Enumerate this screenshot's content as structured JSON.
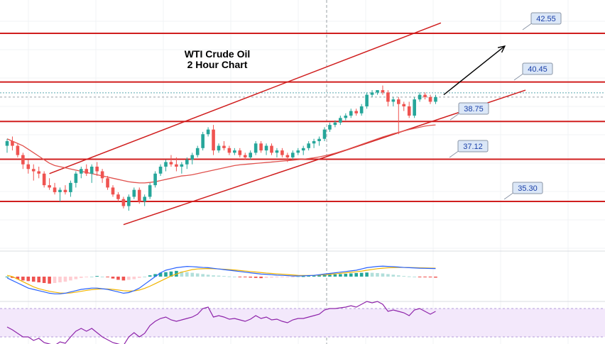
{
  "chart_data": [
    {
      "type": "candlestick",
      "title": "WTI Crude Oil",
      "subtitle": "2 Hour Chart",
      "candles": [
        [
          37.7,
          38.0,
          37.4,
          37.9
        ],
        [
          37.9,
          38.1,
          37.5,
          37.7
        ],
        [
          37.7,
          37.8,
          37.2,
          37.3
        ],
        [
          37.3,
          37.4,
          36.7,
          36.9
        ],
        [
          36.9,
          37.1,
          36.5,
          36.7
        ],
        [
          36.7,
          36.9,
          36.2,
          36.6
        ],
        [
          36.6,
          36.8,
          36.3,
          36.5
        ],
        [
          36.5,
          36.6,
          35.9,
          36.0
        ],
        [
          36.0,
          36.3,
          35.8,
          35.9
        ],
        [
          35.9,
          36.1,
          35.6,
          35.7
        ],
        [
          35.7,
          35.9,
          35.3,
          35.8
        ],
        [
          35.8,
          36.0,
          35.6,
          35.7
        ],
        [
          35.7,
          36.2,
          35.5,
          36.1
        ],
        [
          36.1,
          36.6,
          35.9,
          36.5
        ],
        [
          36.5,
          36.8,
          36.3,
          36.7
        ],
        [
          36.7,
          36.9,
          36.4,
          36.5
        ],
        [
          36.5,
          36.9,
          36.1,
          36.8
        ],
        [
          36.8,
          37.0,
          36.4,
          36.6
        ],
        [
          36.6,
          36.7,
          36.1,
          36.3
        ],
        [
          36.3,
          36.4,
          35.8,
          35.9
        ],
        [
          35.9,
          36.0,
          35.5,
          35.6
        ],
        [
          35.6,
          35.7,
          35.3,
          35.4
        ],
        [
          35.4,
          35.5,
          35.0,
          35.1
        ],
        [
          35.1,
          35.6,
          34.9,
          35.5
        ],
        [
          35.5,
          35.9,
          35.4,
          35.8
        ],
        [
          35.8,
          35.9,
          35.2,
          35.3
        ],
        [
          35.3,
          35.6,
          35.1,
          35.5
        ],
        [
          35.5,
          36.1,
          35.4,
          36.0
        ],
        [
          36.0,
          36.6,
          35.9,
          36.5
        ],
        [
          36.5,
          36.9,
          36.4,
          36.8
        ],
        [
          36.8,
          37.1,
          36.6,
          37.0
        ],
        [
          37.0,
          37.3,
          36.8,
          36.9
        ],
        [
          36.9,
          37.2,
          36.6,
          36.8
        ],
        [
          36.8,
          37.0,
          36.5,
          36.9
        ],
        [
          36.9,
          37.2,
          36.7,
          37.1
        ],
        [
          37.1,
          37.4,
          36.9,
          37.3
        ],
        [
          37.3,
          37.7,
          37.2,
          37.6
        ],
        [
          37.6,
          38.3,
          37.5,
          38.2
        ],
        [
          38.2,
          38.5,
          38.1,
          38.4
        ],
        [
          38.4,
          38.6,
          37.3,
          37.5
        ],
        [
          37.5,
          37.8,
          37.4,
          37.7
        ],
        [
          37.7,
          37.9,
          37.5,
          37.6
        ],
        [
          37.6,
          37.7,
          37.3,
          37.4
        ],
        [
          37.4,
          37.6,
          37.3,
          37.5
        ],
        [
          37.5,
          37.6,
          37.2,
          37.3
        ],
        [
          37.3,
          37.4,
          37.1,
          37.2
        ],
        [
          37.2,
          37.5,
          37.1,
          37.4
        ],
        [
          37.4,
          37.9,
          37.3,
          37.8
        ],
        [
          37.8,
          37.9,
          37.4,
          37.5
        ],
        [
          37.5,
          37.8,
          37.3,
          37.7
        ],
        [
          37.7,
          37.8,
          37.3,
          37.4
        ],
        [
          37.4,
          37.6,
          37.2,
          37.5
        ],
        [
          37.5,
          37.6,
          37.2,
          37.3
        ],
        [
          37.3,
          37.4,
          37.0,
          37.2
        ],
        [
          37.2,
          37.5,
          37.1,
          37.4
        ],
        [
          37.4,
          37.6,
          37.3,
          37.5
        ],
        [
          37.5,
          37.7,
          37.3,
          37.6
        ],
        [
          37.6,
          37.9,
          37.5,
          37.8
        ],
        [
          37.8,
          38.0,
          37.6,
          37.9
        ],
        [
          37.9,
          38.1,
          37.7,
          38.0
        ],
        [
          38.0,
          38.5,
          37.9,
          38.4
        ],
        [
          38.4,
          38.7,
          38.3,
          38.6
        ],
        [
          38.6,
          38.8,
          38.5,
          38.7
        ],
        [
          38.7,
          39.0,
          38.6,
          38.9
        ],
        [
          38.9,
          39.1,
          38.8,
          39.0
        ],
        [
          39.0,
          39.3,
          38.9,
          39.2
        ],
        [
          39.2,
          39.3,
          39.0,
          39.1
        ],
        [
          39.1,
          39.5,
          39.0,
          39.4
        ],
        [
          39.4,
          40.0,
          39.3,
          39.9
        ],
        [
          39.9,
          40.1,
          39.8,
          40.0
        ],
        [
          40.0,
          40.1,
          39.9,
          40.1
        ],
        [
          40.1,
          40.3,
          39.9,
          40.0
        ],
        [
          40.0,
          40.1,
          39.4,
          39.6
        ],
        [
          39.6,
          39.8,
          39.4,
          39.7
        ],
        [
          39.7,
          39.8,
          38.2,
          39.5
        ],
        [
          39.5,
          39.6,
          39.2,
          39.4
        ],
        [
          39.4,
          39.6,
          38.9,
          39.0
        ],
        [
          39.0,
          39.8,
          38.9,
          39.7
        ],
        [
          39.7,
          40.0,
          39.6,
          39.9
        ],
        [
          39.9,
          40.0,
          39.7,
          39.8
        ],
        [
          39.8,
          39.9,
          39.5,
          39.6
        ],
        [
          39.6,
          39.9,
          39.5,
          39.8
        ]
      ],
      "moving_average": [
        38.0,
        37.9,
        37.8,
        37.7,
        37.55,
        37.4,
        37.25,
        37.1,
        36.95,
        36.85,
        36.8,
        36.75,
        36.7,
        36.65,
        36.6,
        36.55,
        36.5,
        36.45,
        36.4,
        36.35,
        36.3,
        36.25,
        36.2,
        36.15,
        36.12,
        36.1,
        36.1,
        36.12,
        36.15,
        36.2,
        36.25,
        36.3,
        36.35,
        36.4,
        36.42,
        36.45,
        36.5,
        36.55,
        36.6,
        36.65,
        36.7,
        36.75,
        36.8,
        36.85,
        36.88,
        36.9,
        36.92,
        36.94,
        36.96,
        36.98,
        37.0,
        37.02,
        37.04,
        37.06,
        37.08,
        37.1,
        37.12,
        37.15,
        37.18,
        37.22,
        37.27,
        37.32,
        37.38,
        37.45,
        37.52,
        37.6,
        37.68,
        37.76,
        37.84,
        37.92,
        38.0,
        38.08,
        38.15,
        38.22,
        38.28,
        38.34,
        38.4,
        38.45,
        38.5,
        38.55,
        38.58,
        38.6
      ],
      "levels": [
        42.55,
        40.45,
        38.75,
        37.12,
        35.3
      ],
      "channel": {
        "upper": [
          [
            8,
            36.5
          ],
          [
            82,
            43.0
          ]
        ],
        "lower": [
          [
            22,
            34.3
          ],
          [
            98,
            40.1
          ]
        ]
      },
      "arrow": {
        "from": [
          82,
          39.9
        ],
        "to": [
          93,
          42.0
        ]
      }
    },
    {
      "type": "macd",
      "histogram": [
        0.0,
        -0.1,
        -0.2,
        -0.3,
        -0.35,
        -0.4,
        -0.45,
        -0.5,
        -0.55,
        -0.5,
        -0.45,
        -0.4,
        -0.3,
        -0.2,
        -0.1,
        -0.05,
        0.0,
        0.05,
        0.0,
        -0.05,
        -0.15,
        -0.25,
        -0.3,
        -0.25,
        -0.2,
        -0.1,
        0.0,
        0.1,
        0.2,
        0.3,
        0.35,
        0.4,
        0.45,
        0.4,
        0.35,
        0.3,
        0.25,
        0.2,
        0.15,
        0.1,
        0.08,
        0.05,
        0.02,
        0.0,
        -0.02,
        -0.05,
        -0.08,
        -0.1,
        -0.12,
        -0.1,
        -0.08,
        -0.06,
        -0.05,
        -0.04,
        -0.03,
        0.0,
        0.03,
        0.05,
        0.08,
        0.1,
        0.12,
        0.15,
        0.18,
        0.2,
        0.22,
        0.25,
        0.28,
        0.3,
        0.32,
        0.3,
        0.28,
        0.25,
        0.2,
        0.15,
        0.1,
        0.05,
        0.02,
        0.0,
        -0.02,
        -0.04,
        -0.06,
        -0.08
      ],
      "macd": [
        -0.1,
        -0.3,
        -0.5,
        -0.7,
        -0.9,
        -1.0,
        -1.1,
        -1.2,
        -1.3,
        -1.35,
        -1.35,
        -1.3,
        -1.2,
        -1.1,
        -1.0,
        -0.95,
        -0.9,
        -0.9,
        -0.95,
        -1.0,
        -1.1,
        -1.2,
        -1.3,
        -1.25,
        -1.1,
        -0.9,
        -0.6,
        -0.3,
        0.0,
        0.3,
        0.5,
        0.6,
        0.7,
        0.75,
        0.8,
        0.78,
        0.75,
        0.72,
        0.7,
        0.65,
        0.6,
        0.55,
        0.5,
        0.45,
        0.4,
        0.35,
        0.3,
        0.25,
        0.2,
        0.18,
        0.15,
        0.12,
        0.1,
        0.08,
        0.05,
        0.05,
        0.06,
        0.08,
        0.1,
        0.15,
        0.2,
        0.25,
        0.3,
        0.35,
        0.4,
        0.45,
        0.5,
        0.6,
        0.7,
        0.75,
        0.8,
        0.82,
        0.8,
        0.78,
        0.75,
        0.72,
        0.7,
        0.68,
        0.66,
        0.65,
        0.64,
        0.63
      ],
      "signal": [
        0.1,
        0.0,
        -0.2,
        -0.4,
        -0.6,
        -0.8,
        -0.95,
        -1.05,
        -1.15,
        -1.22,
        -1.28,
        -1.3,
        -1.28,
        -1.22,
        -1.15,
        -1.08,
        -1.02,
        -0.98,
        -0.96,
        -0.97,
        -1.0,
        -1.05,
        -1.1,
        -1.13,
        -1.12,
        -1.05,
        -0.92,
        -0.75,
        -0.55,
        -0.35,
        -0.15,
        0.05,
        0.2,
        0.35,
        0.45,
        0.55,
        0.6,
        0.62,
        0.63,
        0.62,
        0.6,
        0.58,
        0.55,
        0.52,
        0.48,
        0.44,
        0.4,
        0.36,
        0.32,
        0.28,
        0.25,
        0.22,
        0.19,
        0.16,
        0.13,
        0.1,
        0.09,
        0.09,
        0.1,
        0.12,
        0.15,
        0.18,
        0.22,
        0.26,
        0.3,
        0.34,
        0.38,
        0.43,
        0.5,
        0.56,
        0.62,
        0.66,
        0.69,
        0.71,
        0.72,
        0.72,
        0.71,
        0.7,
        0.69,
        0.68,
        0.67,
        0.66
      ]
    },
    {
      "type": "rsi",
      "values": [
        44,
        40,
        35,
        30,
        30,
        25,
        28,
        22,
        20,
        18,
        23,
        21,
        30,
        38,
        42,
        38,
        42,
        36,
        30,
        26,
        22,
        20,
        18,
        30,
        36,
        30,
        35,
        46,
        52,
        56,
        58,
        54,
        52,
        54,
        56,
        58,
        62,
        70,
        72,
        58,
        60,
        58,
        55,
        56,
        54,
        52,
        55,
        60,
        56,
        58,
        54,
        55,
        52,
        50,
        54,
        56,
        56,
        58,
        60,
        62,
        68,
        70,
        70,
        71,
        72,
        74,
        72,
        76,
        80,
        78,
        80,
        76,
        66,
        68,
        66,
        64,
        60,
        68,
        70,
        66,
        62,
        66
      ]
    }
  ]
}
